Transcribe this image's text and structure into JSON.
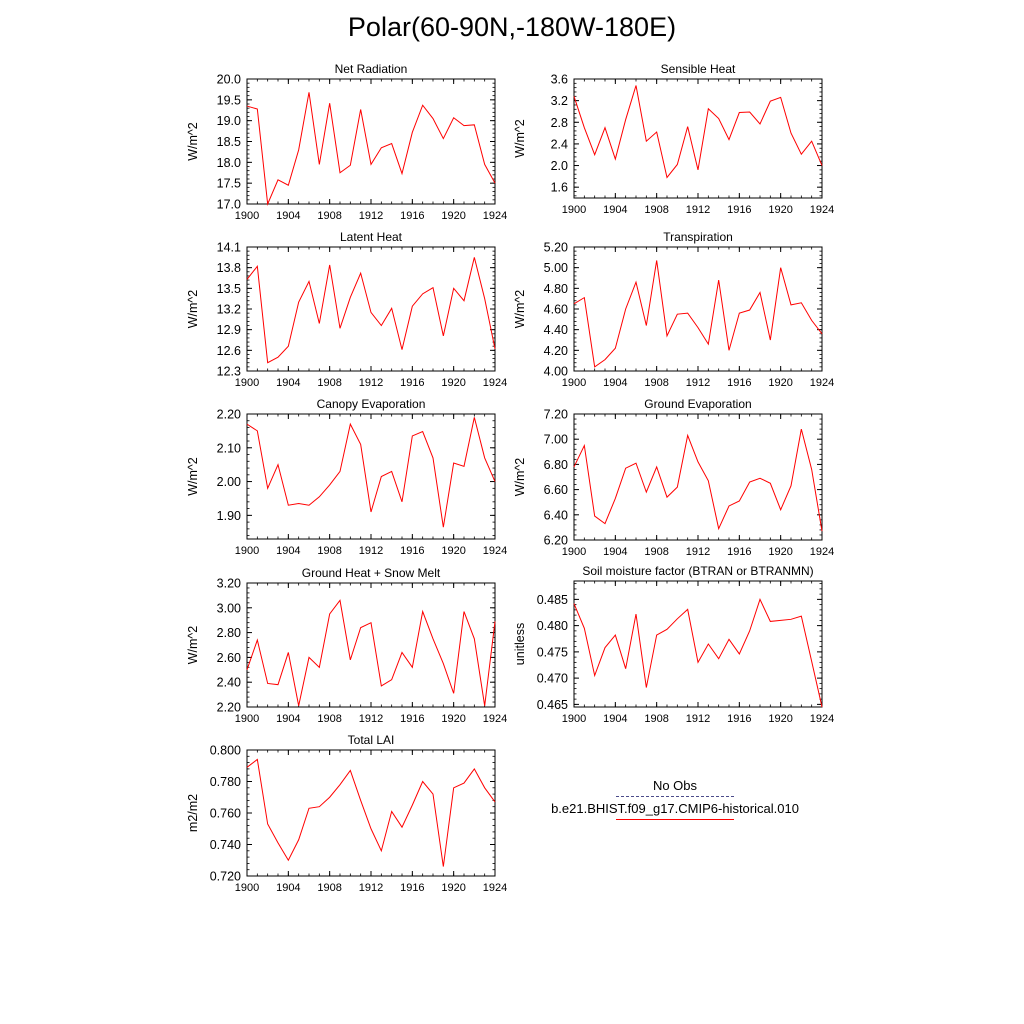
{
  "title": "Polar(60-90N,-180W-180E)",
  "legend": {
    "obs_label": "No Obs",
    "obs_color": "#4b4b8a",
    "model_label": "b.e21.BHIST.f09_g17.CMIP6-historical.010",
    "model_color": "#ff0000"
  },
  "chart_data": [
    {
      "type": "line",
      "title": "Net Radiation",
      "ylabel": "W/m^2",
      "ylim": [
        17.0,
        20.0
      ],
      "yticks": [
        "17.0",
        "17.5",
        "18.0",
        "18.5",
        "19.0",
        "19.5",
        "20.0"
      ],
      "xlim": [
        1900,
        1924
      ],
      "xticks": [
        "1900",
        "1904",
        "1908",
        "1912",
        "1916",
        "1920",
        "1924"
      ],
      "x": [
        1900,
        1901,
        1902,
        1903,
        1904,
        1905,
        1906,
        1907,
        1908,
        1909,
        1910,
        1911,
        1912,
        1913,
        1914,
        1915,
        1916,
        1917,
        1918,
        1919,
        1920,
        1921,
        1922,
        1923,
        1924
      ],
      "series": [
        {
          "color": "#ff0000",
          "values": [
            19.35,
            19.28,
            17.0,
            17.58,
            17.45,
            18.3,
            19.68,
            17.95,
            19.42,
            17.75,
            17.93,
            19.27,
            17.95,
            18.35,
            18.45,
            17.73,
            18.72,
            19.37,
            19.05,
            18.57,
            19.07,
            18.88,
            18.9,
            17.95,
            17.5
          ]
        }
      ]
    },
    {
      "type": "line",
      "title": "Sensible Heat",
      "ylabel": "W/m^2",
      "ylim": [
        1.4,
        3.6
      ],
      "yticks": [
        "1.6",
        "2.0",
        "2.4",
        "2.8",
        "3.2",
        "3.6"
      ],
      "xlim": [
        1900,
        1924
      ],
      "xticks": [
        "1900",
        "1904",
        "1908",
        "1912",
        "1916",
        "1920",
        "1924"
      ],
      "x": [
        1900,
        1901,
        1902,
        1903,
        1904,
        1905,
        1906,
        1907,
        1908,
        1909,
        1910,
        1911,
        1912,
        1913,
        1914,
        1915,
        1916,
        1917,
        1918,
        1919,
        1920,
        1921,
        1922,
        1923,
        1924
      ],
      "series": [
        {
          "color": "#ff0000",
          "values": [
            3.28,
            2.7,
            2.2,
            2.7,
            2.12,
            2.85,
            3.48,
            2.45,
            2.62,
            1.78,
            2.02,
            2.72,
            1.92,
            3.05,
            2.87,
            2.48,
            2.98,
            2.99,
            2.77,
            3.19,
            3.26,
            2.6,
            2.21,
            2.45,
            2.0
          ]
        }
      ]
    },
    {
      "type": "line",
      "title": "Latent Heat",
      "ylabel": "W/m^2",
      "ylim": [
        12.3,
        14.1
      ],
      "yticks": [
        "12.3",
        "12.6",
        "12.9",
        "13.2",
        "13.5",
        "13.8",
        "14.1"
      ],
      "xlim": [
        1900,
        1924
      ],
      "xticks": [
        "1900",
        "1904",
        "1908",
        "1912",
        "1916",
        "1920",
        "1924"
      ],
      "x": [
        1900,
        1901,
        1902,
        1903,
        1904,
        1905,
        1906,
        1907,
        1908,
        1909,
        1910,
        1911,
        1912,
        1913,
        1914,
        1915,
        1916,
        1917,
        1918,
        1919,
        1920,
        1921,
        1922,
        1923,
        1924
      ],
      "series": [
        {
          "color": "#ff0000",
          "values": [
            13.63,
            13.82,
            12.42,
            12.5,
            12.66,
            13.3,
            13.6,
            12.99,
            13.84,
            12.92,
            13.37,
            13.72,
            13.15,
            12.96,
            13.21,
            12.61,
            13.24,
            13.42,
            13.51,
            12.81,
            13.5,
            13.32,
            13.95,
            13.35,
            12.62
          ]
        }
      ]
    },
    {
      "type": "line",
      "title": "Transpiration",
      "ylabel": "W/m^2",
      "ylim": [
        4.0,
        5.2
      ],
      "yticks": [
        "4.00",
        "4.20",
        "4.40",
        "4.60",
        "4.80",
        "5.00",
        "5.20"
      ],
      "xlim": [
        1900,
        1924
      ],
      "xticks": [
        "1900",
        "1904",
        "1908",
        "1912",
        "1916",
        "1920",
        "1924"
      ],
      "x": [
        1900,
        1901,
        1902,
        1903,
        1904,
        1905,
        1906,
        1907,
        1908,
        1909,
        1910,
        1911,
        1912,
        1913,
        1914,
        1915,
        1916,
        1917,
        1918,
        1919,
        1920,
        1921,
        1922,
        1923,
        1924
      ],
      "series": [
        {
          "color": "#ff0000",
          "values": [
            4.65,
            4.71,
            4.04,
            4.11,
            4.22,
            4.6,
            4.86,
            4.44,
            5.07,
            4.34,
            4.55,
            4.56,
            4.42,
            4.26,
            4.88,
            4.2,
            4.56,
            4.59,
            4.76,
            4.3,
            5.0,
            4.64,
            4.66,
            4.49,
            4.36
          ]
        }
      ]
    },
    {
      "type": "line",
      "title": "Canopy Evaporation",
      "ylabel": "W/m^2",
      "ylim": [
        1.83,
        2.2
      ],
      "yticks": [
        "1.90",
        "2.00",
        "2.10",
        "2.20"
      ],
      "xlim": [
        1900,
        1924
      ],
      "xticks": [
        "1900",
        "1904",
        "1908",
        "1912",
        "1916",
        "1920",
        "1924"
      ],
      "x": [
        1900,
        1901,
        1902,
        1903,
        1904,
        1905,
        1906,
        1907,
        1908,
        1909,
        1910,
        1911,
        1912,
        1913,
        1914,
        1915,
        1916,
        1917,
        1918,
        1919,
        1920,
        1921,
        1922,
        1923,
        1924
      ],
      "series": [
        {
          "color": "#ff0000",
          "values": [
            2.17,
            2.15,
            1.98,
            2.05,
            1.93,
            1.935,
            1.93,
            1.955,
            1.99,
            2.03,
            2.17,
            2.11,
            1.91,
            2.015,
            2.03,
            1.94,
            2.135,
            2.148,
            2.07,
            1.865,
            2.055,
            2.045,
            2.19,
            2.07,
            2.0
          ]
        }
      ]
    },
    {
      "type": "line",
      "title": "Ground Evaporation",
      "ylabel": "W/m^2",
      "ylim": [
        6.2,
        7.2
      ],
      "yticks": [
        "6.20",
        "6.40",
        "6.60",
        "6.80",
        "7.00",
        "7.20"
      ],
      "xlim": [
        1900,
        1924
      ],
      "xticks": [
        "1900",
        "1904",
        "1908",
        "1912",
        "1916",
        "1920",
        "1924"
      ],
      "x": [
        1900,
        1901,
        1902,
        1903,
        1904,
        1905,
        1906,
        1907,
        1908,
        1909,
        1910,
        1911,
        1912,
        1913,
        1914,
        1915,
        1916,
        1917,
        1918,
        1919,
        1920,
        1921,
        1922,
        1923,
        1924
      ],
      "series": [
        {
          "color": "#ff0000",
          "values": [
            6.78,
            6.95,
            6.39,
            6.33,
            6.53,
            6.77,
            6.81,
            6.58,
            6.78,
            6.54,
            6.62,
            7.03,
            6.82,
            6.67,
            6.29,
            6.47,
            6.51,
            6.66,
            6.69,
            6.65,
            6.44,
            6.63,
            7.08,
            6.76,
            6.27
          ]
        }
      ]
    },
    {
      "type": "line",
      "title": "Ground Heat + Snow Melt",
      "ylabel": "W/m^2",
      "ylim": [
        2.2,
        3.2
      ],
      "yticks": [
        "2.20",
        "2.40",
        "2.60",
        "2.80",
        "3.00",
        "3.20"
      ],
      "xlim": [
        1900,
        1924
      ],
      "xticks": [
        "1900",
        "1904",
        "1908",
        "1912",
        "1916",
        "1920",
        "1924"
      ],
      "x": [
        1900,
        1901,
        1902,
        1903,
        1904,
        1905,
        1906,
        1907,
        1908,
        1909,
        1910,
        1911,
        1912,
        1913,
        1914,
        1915,
        1916,
        1917,
        1918,
        1919,
        1920,
        1921,
        1922,
        1923,
        1924
      ],
      "series": [
        {
          "color": "#ff0000",
          "values": [
            2.5,
            2.74,
            2.39,
            2.38,
            2.64,
            2.21,
            2.6,
            2.52,
            2.95,
            3.06,
            2.58,
            2.84,
            2.88,
            2.37,
            2.42,
            2.64,
            2.52,
            2.97,
            2.75,
            2.55,
            2.31,
            2.97,
            2.75,
            2.21,
            2.89
          ]
        }
      ]
    },
    {
      "type": "line",
      "title": "Soil moisture factor (BTRAN or BTRANMN)",
      "ylabel": "unitless",
      "ylim": [
        0.4645,
        0.4885
      ],
      "yticks": [
        "0.465",
        "0.470",
        "0.475",
        "0.480",
        "0.485"
      ],
      "xlim": [
        1900,
        1924
      ],
      "xticks": [
        "1900",
        "1904",
        "1908",
        "1912",
        "1916",
        "1920",
        "1924"
      ],
      "x": [
        1900,
        1901,
        1902,
        1903,
        1904,
        1905,
        1906,
        1907,
        1908,
        1909,
        1910,
        1911,
        1912,
        1913,
        1914,
        1915,
        1916,
        1917,
        1918,
        1919,
        1920,
        1921,
        1922,
        1923,
        1924
      ],
      "series": [
        {
          "color": "#ff0000",
          "values": [
            0.4842,
            0.4795,
            0.4705,
            0.4758,
            0.4782,
            0.4718,
            0.4822,
            0.4682,
            0.4782,
            0.4793,
            0.4813,
            0.4831,
            0.473,
            0.4765,
            0.4737,
            0.4774,
            0.4746,
            0.479,
            0.485,
            0.4808,
            0.481,
            0.4812,
            0.4818,
            0.4732,
            0.4645
          ]
        }
      ]
    },
    {
      "type": "line",
      "title": "Total LAI",
      "ylabel": "m2/m2",
      "ylim": [
        0.72,
        0.8
      ],
      "yticks": [
        "0.720",
        "0.740",
        "0.760",
        "0.780",
        "0.800"
      ],
      "xlim": [
        1900,
        1924
      ],
      "xticks": [
        "1900",
        "1904",
        "1908",
        "1912",
        "1916",
        "1920",
        "1924"
      ],
      "x": [
        1900,
        1901,
        1902,
        1903,
        1904,
        1905,
        1906,
        1907,
        1908,
        1909,
        1910,
        1911,
        1912,
        1913,
        1914,
        1915,
        1916,
        1917,
        1918,
        1919,
        1920,
        1921,
        1922,
        1923,
        1924
      ],
      "series": [
        {
          "color": "#ff0000",
          "values": [
            0.789,
            0.794,
            0.753,
            0.741,
            0.73,
            0.743,
            0.763,
            0.764,
            0.77,
            0.778,
            0.787,
            0.768,
            0.75,
            0.736,
            0.761,
            0.751,
            0.765,
            0.78,
            0.772,
            0.726,
            0.776,
            0.779,
            0.788,
            0.776,
            0.767
          ]
        }
      ]
    }
  ]
}
